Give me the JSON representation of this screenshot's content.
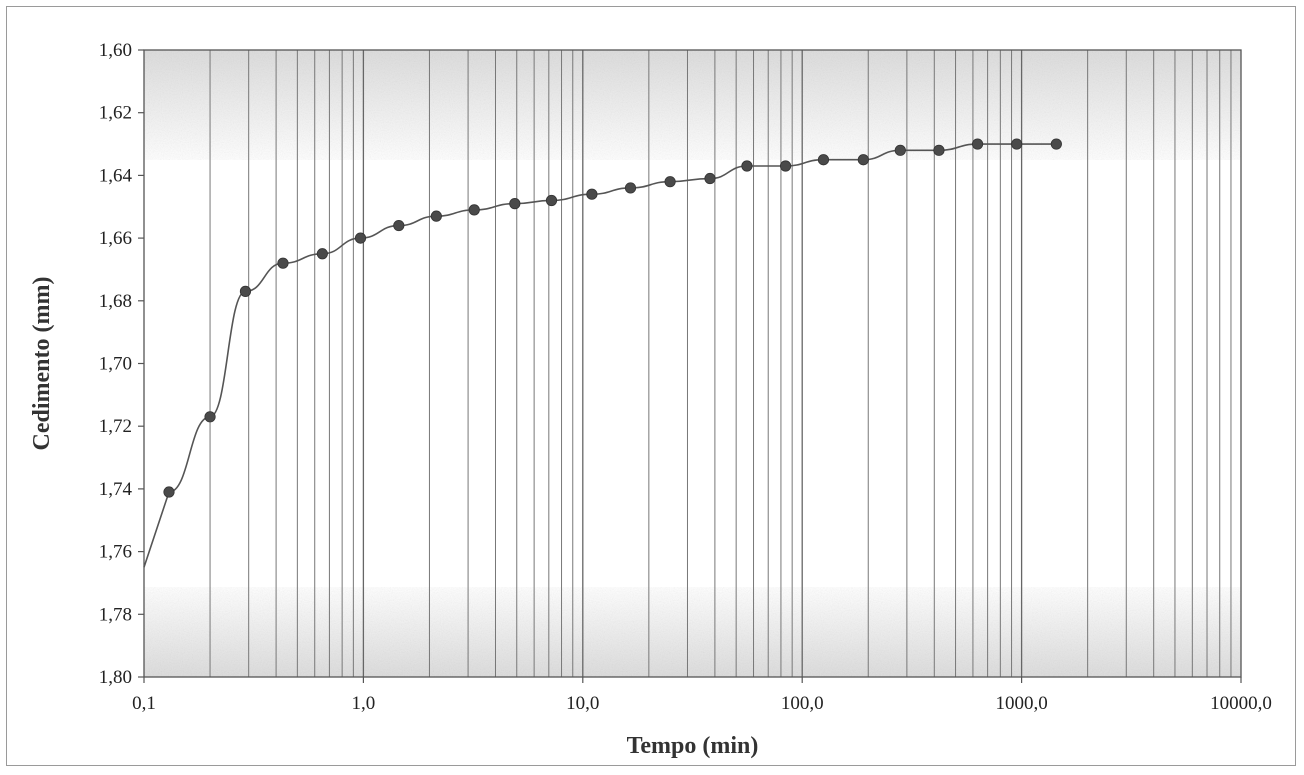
{
  "chart_data": {
    "type": "scatter",
    "title": "",
    "xlabel": "Tempo (min)",
    "ylabel": "Cedimento (mm)",
    "x_scale": "log",
    "xlim": [
      0.1,
      10000
    ],
    "ylim": [
      1.6,
      1.8
    ],
    "y_inverted": true,
    "grid": {
      "vertical_minor": true,
      "horizontal": false
    },
    "legend": "none",
    "x_ticks": [
      {
        "value": 0.1,
        "label": "0,1"
      },
      {
        "value": 1,
        "label": "1,0"
      },
      {
        "value": 10,
        "label": "10,0"
      },
      {
        "value": 100,
        "label": "100,0"
      },
      {
        "value": 1000,
        "label": "1000,0"
      },
      {
        "value": 10000,
        "label": "10000,0"
      }
    ],
    "y_ticks": [
      {
        "value": 1.6,
        "label": "1,60"
      },
      {
        "value": 1.62,
        "label": "1,62"
      },
      {
        "value": 1.64,
        "label": "1,64"
      },
      {
        "value": 1.66,
        "label": "1,66"
      },
      {
        "value": 1.68,
        "label": "1,68"
      },
      {
        "value": 1.7,
        "label": "1,70"
      },
      {
        "value": 1.72,
        "label": "1,72"
      },
      {
        "value": 1.74,
        "label": "1,74"
      },
      {
        "value": 1.76,
        "label": "1,76"
      },
      {
        "value": 1.78,
        "label": "1,78"
      },
      {
        "value": 1.8,
        "label": "1,80"
      }
    ],
    "series": [
      {
        "marker_color": "#4a4a4a",
        "line_color": "#555555",
        "points": [
          {
            "x": 0.13,
            "y": 1.741
          },
          {
            "x": 0.2,
            "y": 1.717
          },
          {
            "x": 0.29,
            "y": 1.677
          },
          {
            "x": 0.43,
            "y": 1.668
          },
          {
            "x": 0.65,
            "y": 1.665
          },
          {
            "x": 0.97,
            "y": 1.66
          },
          {
            "x": 1.45,
            "y": 1.656
          },
          {
            "x": 2.15,
            "y": 1.653
          },
          {
            "x": 3.2,
            "y": 1.651
          },
          {
            "x": 4.9,
            "y": 1.649
          },
          {
            "x": 7.2,
            "y": 1.648
          },
          {
            "x": 11,
            "y": 1.646
          },
          {
            "x": 16.5,
            "y": 1.644
          },
          {
            "x": 25,
            "y": 1.642
          },
          {
            "x": 38,
            "y": 1.641
          },
          {
            "x": 56,
            "y": 1.637
          },
          {
            "x": 84,
            "y": 1.637
          },
          {
            "x": 125,
            "y": 1.635
          },
          {
            "x": 190,
            "y": 1.635
          },
          {
            "x": 280,
            "y": 1.632
          },
          {
            "x": 420,
            "y": 1.632
          },
          {
            "x": 630,
            "y": 1.63
          },
          {
            "x": 950,
            "y": 1.63
          },
          {
            "x": 1440,
            "y": 1.63
          }
        ]
      }
    ]
  }
}
